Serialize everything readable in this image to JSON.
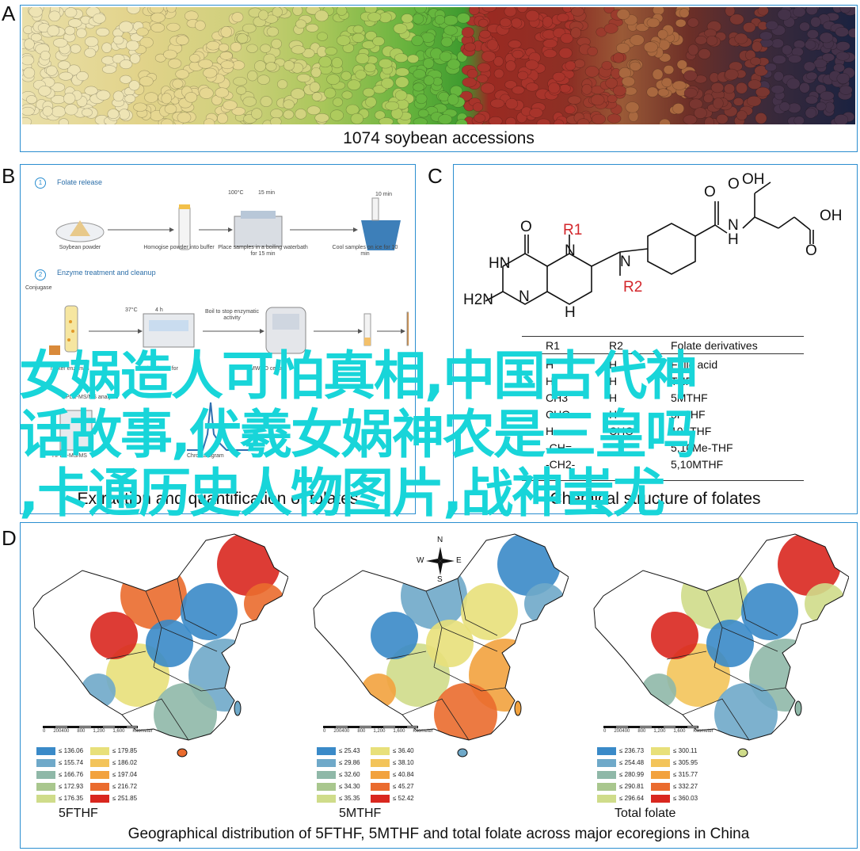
{
  "panels": {
    "a": {
      "letter": "A",
      "caption": "1074 soybean accessions"
    },
    "b": {
      "letter": "B",
      "step1": {
        "num": "1",
        "title": "Folate release",
        "items": [
          "Soybean powder",
          "Homogise powder into buffer",
          "Place samples in a boiling waterbath for 15 min",
          "Cool samples on ice for 10 min"
        ],
        "temp": "100°C",
        "time1": "15 min",
        "time2": "10 min"
      },
      "step2": {
        "num": "2",
        "title": "Enzyme treatment and cleanup",
        "items": [
          "Conjugase",
          "Boil to stop enzymatic activity"
        ],
        "temp": "37°C",
        "time": "4 h"
      },
      "labels_partial": [
        "nicker enzymes",
        "incubator for",
        "MWCO centri",
        "HPLC-MS/MS analysis",
        "HPLC-MS/MS",
        "Chromatogram"
      ],
      "caption": "Extraction and quantification of folates"
    },
    "c": {
      "letter": "C",
      "atoms": {
        "O1": "O",
        "OH1": "OH",
        "OH2": "OH",
        "O2": "O",
        "O3": "O",
        "O4": "O",
        "N1": "N",
        "H1": "H",
        "N2": "N",
        "HN": "HN",
        "N3": "N",
        "N4": "N",
        "H2": "H",
        "H2N": "H2N",
        "R1": "R1",
        "R2": "R2"
      },
      "table": {
        "headers": [
          "R1",
          "R2",
          "Folate derivatives"
        ],
        "rows": [
          [
            "H",
            "H",
            "Folic acid"
          ],
          [
            "H",
            "H",
            "THF"
          ],
          [
            "CH3",
            "H",
            "5MTHF"
          ],
          [
            "CHO",
            "H",
            "5FTHF"
          ],
          [
            "H",
            "CHO",
            "10FTHF"
          ],
          [
            "-CH=",
            "",
            "5,10Me-THF"
          ],
          [
            "-CH2-",
            "",
            "5,10MTHF"
          ]
        ]
      },
      "caption": "Chemical structure of folates"
    },
    "d": {
      "letter": "D",
      "compass": {
        "n": "N",
        "s": "S",
        "e": "E",
        "w": "W"
      },
      "scale": {
        "ticks": [
          "0",
          "200400",
          "800",
          "1,200",
          "1,600"
        ],
        "unit": "Kilometer"
      },
      "maps": [
        {
          "title": "5FTHF",
          "legend_left": [
            "≤ 136.06",
            "≤ 155.74",
            "≤ 166.76",
            "≤ 172.93",
            "≤ 176.35"
          ],
          "legend_right": [
            "≤ 179.85",
            "≤ 186.02",
            "≤ 197.04",
            "≤ 216.72",
            "≤ 251.85"
          ]
        },
        {
          "title": "5MTHF",
          "legend_left": [
            "≤ 25.43",
            "≤ 29.86",
            "≤ 32.60",
            "≤ 34.30",
            "≤ 35.35"
          ],
          "legend_right": [
            "≤ 36.40",
            "≤ 38.10",
            "≤ 40.84",
            "≤ 45.27",
            "≤ 52.42"
          ]
        },
        {
          "title": "Total folate",
          "legend_left": [
            "≤ 236.73",
            "≤ 254.48",
            "≤ 280.99",
            "≤ 290.81",
            "≤ 296.64"
          ],
          "legend_right": [
            "≤ 300.11",
            "≤ 305.95",
            "≤ 315.77",
            "≤ 332.27",
            "≤ 360.03"
          ]
        }
      ],
      "legend_colors": [
        "#3a8ac8",
        "#6fa9c9",
        "#8fb8a8",
        "#a9c78e",
        "#cfdc8a",
        "#e8e07a",
        "#f3c45a",
        "#f2a23e",
        "#ea6b2e",
        "#d9271f"
      ],
      "caption": "Geographical distribution of 5FTHF, 5MTHF and total folate across major ecoregions in China"
    }
  },
  "overlay": {
    "line1": "女娲造人可怕真相,中国古代神",
    "line2": "话故事,伏羲女娲神农是三皇吗",
    "line3": ",卡通历史人物图片,战神蚩尤"
  }
}
